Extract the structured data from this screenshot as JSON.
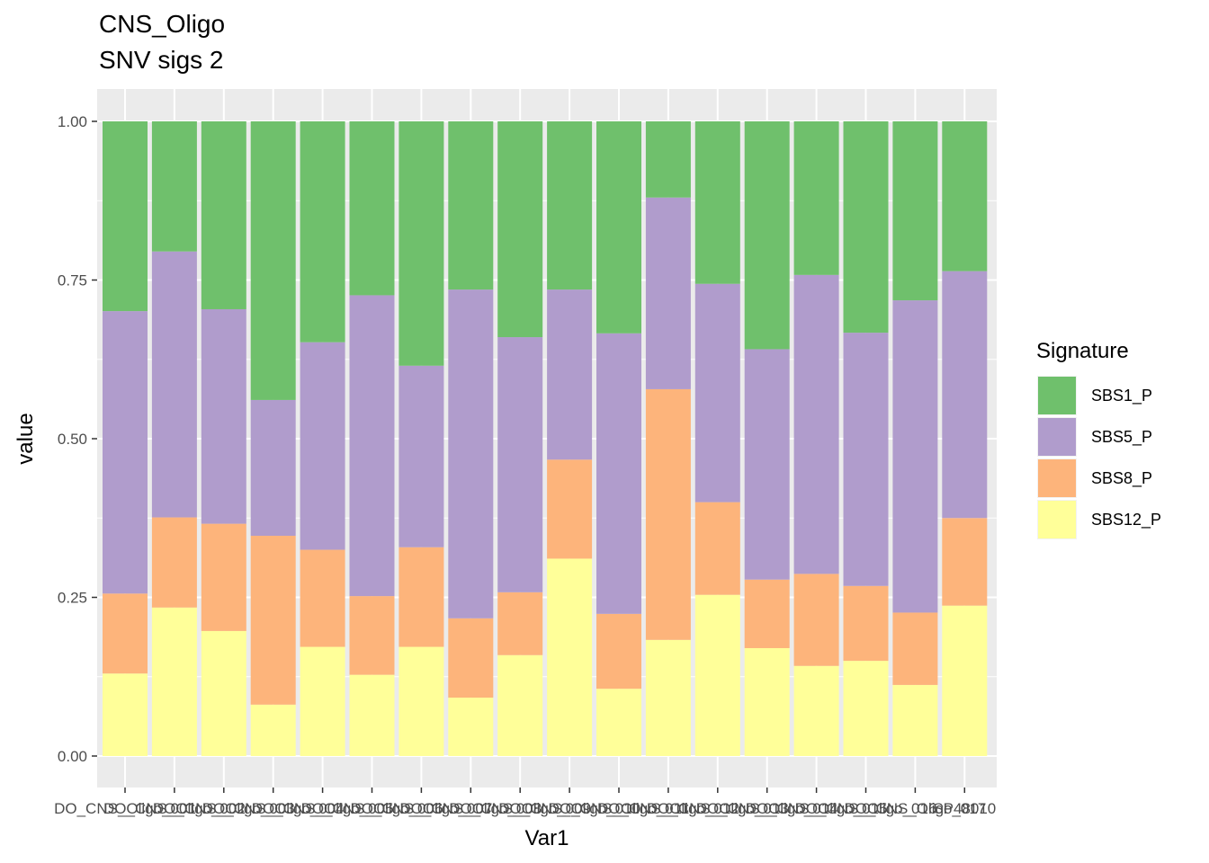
{
  "chart_data": {
    "type": "bar",
    "stacked": true,
    "title": [
      "CNS_Oligo",
      "SNV sigs 2"
    ],
    "xlabel": "Var1",
    "ylabel": "value",
    "ylim": [
      0,
      1
    ],
    "yticks": [
      "0.00",
      "0.25",
      "0.50",
      "0.75",
      "1.00"
    ],
    "ytick_values": [
      0,
      0.25,
      0.5,
      0.75,
      1.0
    ],
    "grid": true,
    "legend": {
      "title": "Signature",
      "placement": "right"
    },
    "categories": [
      "DO_CNS_Oligo_001",
      "DO_CNS_Oligo_002",
      "DO_CNS_Oligo_003",
      "DO_CNS_Oligo_004",
      "DO_CNS_Oligo_005",
      "DO_CNS_Oligo_006",
      "DO_CNS_Oligo_007",
      "DO_CNS_Oligo_008",
      "DO_CNS_Oligo_009",
      "DO_CNS_Oligo_010",
      "DO_CNS_Oligo_011",
      "DO_CNS_Oligo_012",
      "DO_CNS_Oligo_013",
      "DO_CNS_Oligo_014",
      "DO_CNS_Oligo_015",
      "DO_CNS_Oligo_016",
      "DO_CNS_Oligo_017",
      "SP48010"
    ],
    "series": [
      {
        "name": "SBS12_P",
        "color": "#FFFF99",
        "values": [
          0.13,
          0.234,
          0.197,
          0.081,
          0.172,
          0.128,
          0.172,
          0.092,
          0.159,
          0.311,
          0.106,
          0.183,
          0.254,
          0.17,
          0.142,
          0.15,
          0.112,
          0.237
        ]
      },
      {
        "name": "SBS8_P",
        "color": "#FDB47B",
        "values": [
          0.126,
          0.142,
          0.169,
          0.266,
          0.153,
          0.124,
          0.157,
          0.125,
          0.099,
          0.156,
          0.118,
          0.395,
          0.146,
          0.108,
          0.145,
          0.118,
          0.114,
          0.138
        ]
      },
      {
        "name": "SBS5_P",
        "color": "#B09CCC",
        "values": [
          0.445,
          0.419,
          0.338,
          0.214,
          0.327,
          0.474,
          0.286,
          0.518,
          0.402,
          0.268,
          0.442,
          0.302,
          0.344,
          0.363,
          0.471,
          0.399,
          0.492,
          0.389
        ]
      },
      {
        "name": "SBS1_P",
        "color": "#6FC06C",
        "values": [
          0.299,
          0.205,
          0.296,
          0.439,
          0.348,
          0.274,
          0.385,
          0.265,
          0.34,
          0.265,
          0.334,
          0.12,
          0.256,
          0.359,
          0.242,
          0.333,
          0.282,
          0.236
        ]
      }
    ],
    "legend_order": [
      "SBS1_P",
      "SBS5_P",
      "SBS8_P",
      "SBS12_P"
    ],
    "panel_background": "#EBEBEB",
    "grid_color": "#FFFFFF"
  }
}
